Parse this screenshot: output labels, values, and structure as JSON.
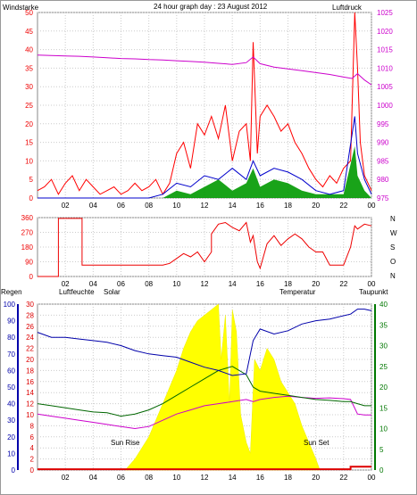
{
  "title": "24 hour graph day : 23 August 2012",
  "colors": {
    "wind": "#ee0000",
    "gust": "#ff0000",
    "avg": "#0000cc",
    "wind_green": "#009900",
    "pressure": "#cc00cc",
    "humidity": "#0000aa",
    "temperature": "#006600",
    "dewpoint": "#cc00cc",
    "solar": "#ffff00",
    "rain": "#dd0000",
    "grid": "#cccccc"
  },
  "chart_data": [
    {
      "type": "line",
      "name": "wind-pressure",
      "left_label": "Windstarke",
      "right_label": "Luftdruck",
      "x_ticks": [
        "02",
        "04",
        "06",
        "08",
        "10",
        "12",
        "14",
        "16",
        "18",
        "20",
        "22",
        "00"
      ],
      "ylim_left": [
        0,
        50
      ],
      "y_ticks_left": [
        0,
        5,
        10,
        15,
        20,
        25,
        30,
        35,
        40,
        45,
        50
      ],
      "ylim_right": [
        975,
        1025
      ],
      "y_ticks_right": [
        975,
        980,
        985,
        990,
        995,
        1000,
        1005,
        1010,
        1015,
        1020,
        1025
      ],
      "pressure": {
        "x": [
          0,
          1,
          2,
          3,
          4,
          5,
          6,
          7,
          8,
          9,
          10,
          11,
          12,
          13,
          14,
          15,
          15.5,
          16,
          17,
          18,
          19,
          20,
          21,
          22,
          22.6,
          23,
          23.5,
          24
        ],
        "y": [
          1013.5,
          1013.4,
          1013.3,
          1013.2,
          1013.0,
          1012.8,
          1012.6,
          1012.5,
          1012.3,
          1012.2,
          1012.0,
          1011.8,
          1011.6,
          1011.3,
          1011.0,
          1011.5,
          1013.0,
          1011.2,
          1010.3,
          1009.8,
          1009.3,
          1008.8,
          1008.3,
          1007.6,
          1007.2,
          1008.5,
          1006.8,
          1005.5
        ]
      },
      "gust": {
        "x": [
          0,
          0.5,
          1,
          1.5,
          2,
          2.5,
          3,
          3.5,
          4,
          4.5,
          5,
          5.5,
          6,
          6.5,
          7,
          7.5,
          8,
          8.5,
          9,
          9.5,
          10,
          10.5,
          11,
          11.5,
          12,
          12.5,
          13,
          13.5,
          14,
          14.5,
          15,
          15.3,
          15.5,
          15.8,
          16,
          16.5,
          17,
          17.5,
          18,
          18.5,
          19,
          19.5,
          20,
          20.5,
          21,
          21.5,
          22,
          22.5,
          22.8,
          23,
          23.2,
          23.5,
          24
        ],
        "y": [
          2,
          3,
          5,
          1,
          4,
          6,
          2,
          5,
          3,
          1,
          2,
          3,
          1,
          2,
          4,
          2,
          3,
          5,
          1,
          4,
          12,
          15,
          8,
          20,
          17,
          22,
          16,
          25,
          10,
          18,
          20,
          10,
          42,
          12,
          22,
          25,
          22,
          18,
          20,
          15,
          12,
          8,
          5,
          3,
          6,
          4,
          8,
          10,
          50,
          35,
          15,
          6,
          2
        ]
      },
      "avg": {
        "x": [
          0,
          8,
          9,
          10,
          11,
          12,
          13,
          14,
          15,
          15.5,
          16,
          17,
          18,
          19,
          20,
          21,
          22,
          22.8,
          23,
          23.5,
          24
        ],
        "y": [
          0,
          0,
          1,
          4,
          3,
          6,
          5,
          8,
          5,
          10,
          6,
          8,
          7,
          5,
          2,
          1,
          2,
          22,
          12,
          5,
          1
        ]
      },
      "green": {
        "x": [
          0,
          9,
          10,
          11,
          12,
          13,
          14,
          15,
          15.5,
          16,
          17,
          18,
          19,
          20,
          22,
          22.8,
          23,
          23.5,
          24
        ],
        "y": [
          0,
          0,
          2,
          1,
          3,
          5,
          2,
          4,
          8,
          3,
          5,
          4,
          2,
          1,
          1,
          14,
          6,
          2,
          0
        ]
      }
    },
    {
      "type": "line",
      "name": "wind-direction",
      "right_label": "N W S O N",
      "x_ticks": [
        "02",
        "04",
        "06",
        "08",
        "10",
        "12",
        "14",
        "16",
        "18",
        "20",
        "22",
        "00"
      ],
      "ylim": [
        0,
        360
      ],
      "y_ticks": [
        0,
        90,
        180,
        270,
        360
      ],
      "direction": {
        "x": [
          0,
          1.5,
          1.5,
          3.2,
          3.2,
          4,
          6,
          8,
          9,
          9.5,
          10,
          10.5,
          11,
          11.5,
          12,
          12.5,
          12.5,
          13,
          13.5,
          14,
          14.5,
          15,
          15.3,
          15.5,
          15.8,
          16,
          16.5,
          17,
          17.5,
          18,
          18.5,
          19,
          19.5,
          20,
          20.5,
          21,
          22,
          22.5,
          22.8,
          23,
          23.5,
          24
        ],
        "y": [
          0,
          0,
          355,
          355,
          70,
          70,
          70,
          70,
          70,
          80,
          110,
          140,
          120,
          150,
          90,
          150,
          260,
          320,
          330,
          300,
          280,
          330,
          210,
          250,
          90,
          50,
          200,
          250,
          190,
          230,
          260,
          230,
          180,
          150,
          150,
          70,
          70,
          180,
          310,
          290,
          320,
          310
        ]
      }
    },
    {
      "type": "line",
      "name": "humidity-temperature-solar",
      "labels": {
        "rain": "Regen",
        "humidity": "Luftfeuchte",
        "solar": "Solar",
        "temperature": "Temperatur",
        "dewpoint": "Taupunkt"
      },
      "x_ticks": [
        "02",
        "04",
        "06",
        "08",
        "10",
        "12",
        "14",
        "16",
        "18",
        "20",
        "22",
        "00"
      ],
      "ylim_humidity": [
        0,
        100
      ],
      "y_ticks_humidity": [
        0,
        10,
        20,
        30,
        40,
        50,
        60,
        70,
        80,
        90,
        100
      ],
      "ylim_rain": [
        0,
        30
      ],
      "y_ticks_rain": [
        0,
        2,
        4,
        6,
        8,
        10,
        12,
        14,
        16,
        18,
        20,
        22,
        24,
        26,
        28,
        30
      ],
      "ylim_temperature": [
        0,
        40
      ],
      "y_ticks_temperature": [
        0,
        5,
        10,
        15,
        20,
        25,
        30,
        35,
        40
      ],
      "annotations": [
        "Sun Rise",
        "Sun Set"
      ],
      "humidity": {
        "x": [
          0,
          1,
          2,
          3,
          4,
          5,
          6,
          7,
          8,
          9,
          10,
          11,
          12,
          13,
          14,
          15,
          15.5,
          16,
          17,
          18,
          19,
          20,
          21,
          22,
          22.5,
          23,
          23.5,
          24
        ],
        "y": [
          83,
          80,
          80,
          79,
          78,
          77,
          75,
          72,
          70,
          69,
          68,
          65,
          62,
          60,
          57,
          58,
          78,
          85,
          82,
          84,
          88,
          90,
          91,
          93,
          94,
          97,
          97,
          96
        ]
      },
      "temperature": {
        "x": [
          0,
          1,
          2,
          3,
          4,
          5,
          6,
          7,
          8,
          9,
          10,
          11,
          12,
          13,
          14,
          15,
          15.5,
          16,
          17,
          18,
          19,
          20,
          21,
          22,
          22.5,
          23,
          23.5,
          24
        ],
        "y": [
          16,
          15.5,
          15,
          14.5,
          14,
          13.8,
          13,
          13.5,
          14.5,
          16,
          18,
          20,
          22,
          24,
          25,
          23,
          20,
          19,
          18.5,
          18,
          17.5,
          17,
          16.8,
          16.5,
          16.5,
          16,
          15.5,
          15.5
        ]
      },
      "dewpoint": {
        "x": [
          0,
          1,
          2,
          3,
          4,
          5,
          6,
          7,
          8,
          9,
          10,
          11,
          12,
          13,
          14,
          15,
          15.5,
          16,
          17,
          18,
          19,
          20,
          21,
          22,
          22.5,
          23,
          23.5,
          24
        ],
        "y": [
          13.5,
          13,
          12.5,
          12,
          11.5,
          11,
          10.5,
          10,
          10.5,
          12,
          13.5,
          14.5,
          15.5,
          16,
          16.5,
          17,
          16.5,
          17,
          17.5,
          17.8,
          17.5,
          17.3,
          17.4,
          17.2,
          17.0,
          13.5,
          13.3,
          13.3
        ]
      },
      "solar": {
        "x": [
          6.3,
          7,
          8,
          9,
          10,
          10.5,
          11,
          11.5,
          12,
          12.5,
          13,
          13.2,
          13.5,
          13.8,
          14,
          14.3,
          14.6,
          15,
          15.3,
          15.6,
          16,
          16.5,
          17,
          17.5,
          18,
          18.5,
          19,
          19.5,
          20,
          20.3
        ],
        "y": [
          0,
          2,
          6,
          12,
          18,
          22,
          25,
          27,
          28,
          29,
          30,
          20,
          28,
          12,
          29,
          25,
          10,
          5,
          3,
          20,
          18,
          22,
          20,
          16,
          14,
          12,
          8,
          5,
          2,
          0
        ]
      },
      "rain": {
        "x": [
          0,
          22.5,
          22.5,
          24
        ],
        "y": [
          0.15,
          0.15,
          0.6,
          0.6
        ]
      }
    }
  ]
}
